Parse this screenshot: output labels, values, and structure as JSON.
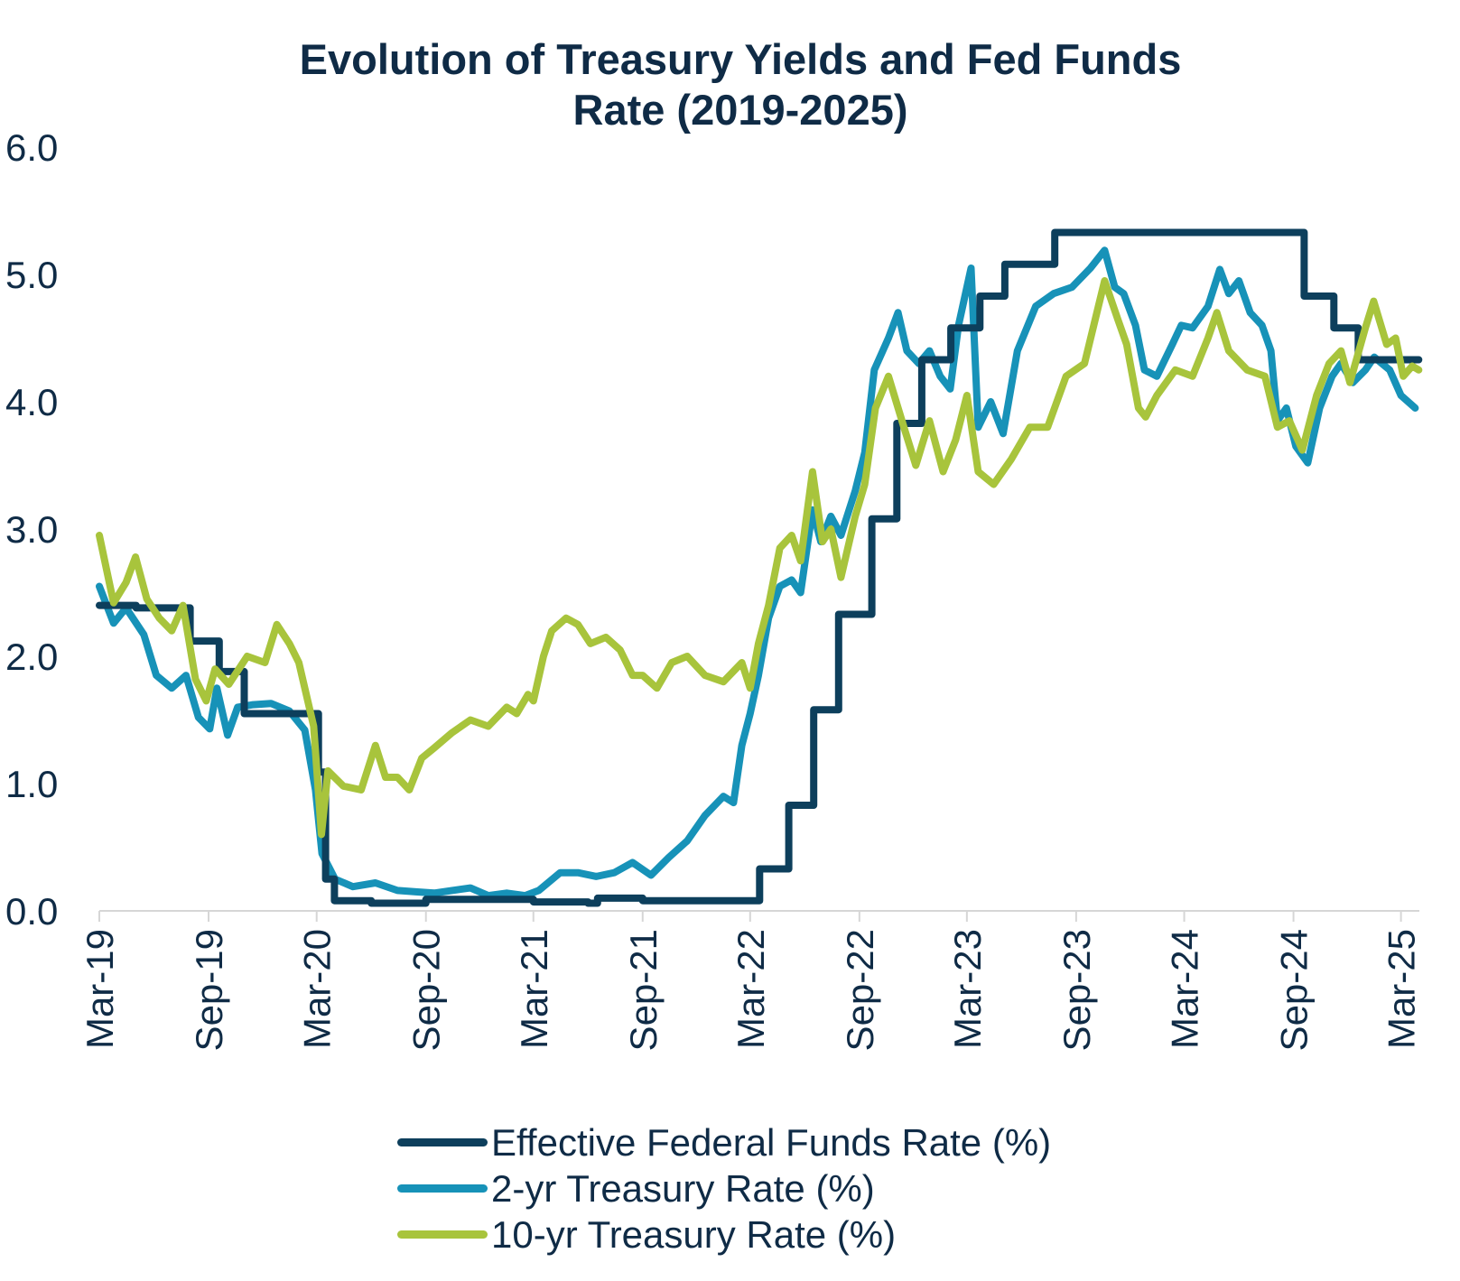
{
  "chart_data": {
    "type": "line",
    "title_lines": [
      "Evolution of Treasury Yields and Fed Funds",
      "Rate (2019-2025)"
    ],
    "xlabel": "",
    "ylabel": "",
    "ylim": [
      0,
      6
    ],
    "y_ticks": [
      "0.0",
      "1.0",
      "2.0",
      "3.0",
      "4.0",
      "5.0",
      "6.0"
    ],
    "x_range": [
      "2019-03-01",
      "2025-04-01"
    ],
    "x_ticks": [
      {
        "label": "Mar-19",
        "date": "2019-03-01"
      },
      {
        "label": "Sep-19",
        "date": "2019-09-01"
      },
      {
        "label": "Mar-20",
        "date": "2020-03-01"
      },
      {
        "label": "Sep-20",
        "date": "2020-09-01"
      },
      {
        "label": "Mar-21",
        "date": "2021-03-01"
      },
      {
        "label": "Sep-21",
        "date": "2021-09-01"
      },
      {
        "label": "Mar-22",
        "date": "2022-03-01"
      },
      {
        "label": "Sep-22",
        "date": "2022-09-01"
      },
      {
        "label": "Mar-23",
        "date": "2023-03-01"
      },
      {
        "label": "Sep-23",
        "date": "2023-09-01"
      },
      {
        "label": "Mar-24",
        "date": "2024-03-01"
      },
      {
        "label": "Sep-24",
        "date": "2024-09-01"
      },
      {
        "label": "Mar-25",
        "date": "2025-03-01"
      }
    ],
    "grid": false,
    "legend_position": "bottom",
    "series": [
      {
        "name": "Effective Federal Funds Rate (%)",
        "color": "#0d3f5c",
        "step": true,
        "points": [
          [
            "2019-03-01",
            2.4
          ],
          [
            "2019-05-01",
            2.4
          ],
          [
            "2019-05-02",
            2.38
          ],
          [
            "2019-07-31",
            2.38
          ],
          [
            "2019-08-01",
            2.12
          ],
          [
            "2019-09-18",
            2.12
          ],
          [
            "2019-09-19",
            1.88
          ],
          [
            "2019-10-30",
            1.88
          ],
          [
            "2019-10-31",
            1.55
          ],
          [
            "2020-03-03",
            1.55
          ],
          [
            "2020-03-04",
            1.09
          ],
          [
            "2020-03-15",
            1.09
          ],
          [
            "2020-03-16",
            0.25
          ],
          [
            "2020-03-31",
            0.08
          ],
          [
            "2020-06-01",
            0.06
          ],
          [
            "2020-09-01",
            0.09
          ],
          [
            "2020-12-01",
            0.09
          ],
          [
            "2021-03-01",
            0.07
          ],
          [
            "2021-06-01",
            0.06
          ],
          [
            "2021-06-17",
            0.1
          ],
          [
            "2021-09-01",
            0.08
          ],
          [
            "2022-03-16",
            0.08
          ],
          [
            "2022-03-17",
            0.33
          ],
          [
            "2022-05-04",
            0.33
          ],
          [
            "2022-05-05",
            0.83
          ],
          [
            "2022-06-15",
            0.83
          ],
          [
            "2022-06-16",
            1.58
          ],
          [
            "2022-07-27",
            1.58
          ],
          [
            "2022-07-28",
            2.33
          ],
          [
            "2022-09-21",
            2.33
          ],
          [
            "2022-09-22",
            3.08
          ],
          [
            "2022-11-02",
            3.08
          ],
          [
            "2022-11-03",
            3.83
          ],
          [
            "2022-12-14",
            3.83
          ],
          [
            "2022-12-15",
            4.33
          ],
          [
            "2023-02-01",
            4.33
          ],
          [
            "2023-02-02",
            4.58
          ],
          [
            "2023-03-22",
            4.58
          ],
          [
            "2023-03-23",
            4.83
          ],
          [
            "2023-05-03",
            4.83
          ],
          [
            "2023-05-04",
            5.08
          ],
          [
            "2023-07-26",
            5.08
          ],
          [
            "2023-07-27",
            5.33
          ],
          [
            "2024-09-18",
            5.33
          ],
          [
            "2024-09-19",
            4.83
          ],
          [
            "2024-11-07",
            4.83
          ],
          [
            "2024-11-08",
            4.58
          ],
          [
            "2024-12-18",
            4.58
          ],
          [
            "2024-12-19",
            4.33
          ],
          [
            "2025-03-31",
            4.33
          ]
        ]
      },
      {
        "name": "2-yr Treasury Rate (%)",
        "color": "#1792b8",
        "step": false,
        "points": [
          [
            "2019-03-01",
            2.55
          ],
          [
            "2019-03-25",
            2.26
          ],
          [
            "2019-04-15",
            2.38
          ],
          [
            "2019-05-15",
            2.17
          ],
          [
            "2019-06-05",
            1.85
          ],
          [
            "2019-07-01",
            1.75
          ],
          [
            "2019-07-25",
            1.85
          ],
          [
            "2019-08-15",
            1.52
          ],
          [
            "2019-09-03",
            1.43
          ],
          [
            "2019-09-15",
            1.75
          ],
          [
            "2019-10-03",
            1.38
          ],
          [
            "2019-10-20",
            1.6
          ],
          [
            "2019-11-15",
            1.62
          ],
          [
            "2019-12-15",
            1.63
          ],
          [
            "2020-01-15",
            1.57
          ],
          [
            "2020-02-10",
            1.42
          ],
          [
            "2020-02-28",
            0.95
          ],
          [
            "2020-03-10",
            0.45
          ],
          [
            "2020-04-01",
            0.25
          ],
          [
            "2020-05-01",
            0.19
          ],
          [
            "2020-06-08",
            0.22
          ],
          [
            "2020-07-15",
            0.16
          ],
          [
            "2020-08-15",
            0.15
          ],
          [
            "2020-09-15",
            0.14
          ],
          [
            "2020-10-15",
            0.16
          ],
          [
            "2020-11-15",
            0.18
          ],
          [
            "2020-12-15",
            0.12
          ],
          [
            "2021-01-15",
            0.14
          ],
          [
            "2021-02-15",
            0.12
          ],
          [
            "2021-03-10",
            0.16
          ],
          [
            "2021-04-15",
            0.3
          ],
          [
            "2021-05-15",
            0.3
          ],
          [
            "2021-06-15",
            0.27
          ],
          [
            "2021-07-15",
            0.3
          ],
          [
            "2021-08-15",
            0.38
          ],
          [
            "2021-09-15",
            0.28
          ],
          [
            "2021-10-15",
            0.42
          ],
          [
            "2021-11-15",
            0.55
          ],
          [
            "2021-12-15",
            0.75
          ],
          [
            "2022-01-15",
            0.9
          ],
          [
            "2022-02-01",
            0.85
          ],
          [
            "2022-02-15",
            1.3
          ],
          [
            "2022-03-01",
            1.55
          ],
          [
            "2022-03-15",
            1.85
          ],
          [
            "2022-04-01",
            2.3
          ],
          [
            "2022-04-20",
            2.55
          ],
          [
            "2022-05-10",
            2.6
          ],
          [
            "2022-05-25",
            2.5
          ],
          [
            "2022-06-14",
            3.15
          ],
          [
            "2022-06-28",
            2.9
          ],
          [
            "2022-07-15",
            3.1
          ],
          [
            "2022-08-01",
            2.95
          ],
          [
            "2022-08-25",
            3.3
          ],
          [
            "2022-09-10",
            3.6
          ],
          [
            "2022-09-26",
            4.25
          ],
          [
            "2022-10-20",
            4.5
          ],
          [
            "2022-11-05",
            4.7
          ],
          [
            "2022-11-20",
            4.4
          ],
          [
            "2022-12-10",
            4.3
          ],
          [
            "2022-12-28",
            4.4
          ],
          [
            "2023-01-15",
            4.2
          ],
          [
            "2023-02-01",
            4.1
          ],
          [
            "2023-02-15",
            4.6
          ],
          [
            "2023-03-08",
            5.05
          ],
          [
            "2023-03-20",
            3.8
          ],
          [
            "2023-04-10",
            4.0
          ],
          [
            "2023-05-01",
            3.75
          ],
          [
            "2023-05-25",
            4.4
          ],
          [
            "2023-06-25",
            4.75
          ],
          [
            "2023-07-25",
            4.85
          ],
          [
            "2023-08-25",
            4.9
          ],
          [
            "2023-09-25",
            5.05
          ],
          [
            "2023-10-19",
            5.19
          ],
          [
            "2023-11-05",
            4.9
          ],
          [
            "2023-11-20",
            4.85
          ],
          [
            "2023-12-10",
            4.6
          ],
          [
            "2023-12-25",
            4.25
          ],
          [
            "2024-01-15",
            4.2
          ],
          [
            "2024-02-10",
            4.45
          ],
          [
            "2024-02-25",
            4.6
          ],
          [
            "2024-03-15",
            4.58
          ],
          [
            "2024-04-10",
            4.75
          ],
          [
            "2024-04-30",
            5.04
          ],
          [
            "2024-05-15",
            4.85
          ],
          [
            "2024-06-01",
            4.95
          ],
          [
            "2024-06-20",
            4.7
          ],
          [
            "2024-07-10",
            4.6
          ],
          [
            "2024-07-25",
            4.4
          ],
          [
            "2024-08-05",
            3.85
          ],
          [
            "2024-08-20",
            3.95
          ],
          [
            "2024-09-05",
            3.65
          ],
          [
            "2024-09-25",
            3.52
          ],
          [
            "2024-10-15",
            3.95
          ],
          [
            "2024-11-05",
            4.2
          ],
          [
            "2024-11-20",
            4.3
          ],
          [
            "2024-12-10",
            4.15
          ],
          [
            "2024-12-31",
            4.25
          ],
          [
            "2025-01-15",
            4.35
          ],
          [
            "2025-02-10",
            4.25
          ],
          [
            "2025-03-01",
            4.05
          ],
          [
            "2025-03-25",
            3.95
          ]
        ]
      },
      {
        "name": "10-yr Treasury Rate (%)",
        "color": "#a8c43c",
        "step": false,
        "points": [
          [
            "2019-03-01",
            2.95
          ],
          [
            "2019-03-25",
            2.42
          ],
          [
            "2019-04-15",
            2.58
          ],
          [
            "2019-05-01",
            2.78
          ],
          [
            "2019-05-20",
            2.45
          ],
          [
            "2019-06-10",
            2.3
          ],
          [
            "2019-07-01",
            2.2
          ],
          [
            "2019-07-20",
            2.4
          ],
          [
            "2019-08-10",
            1.82
          ],
          [
            "2019-08-28",
            1.65
          ],
          [
            "2019-09-12",
            1.9
          ],
          [
            "2019-10-05",
            1.78
          ],
          [
            "2019-11-05",
            2.0
          ],
          [
            "2019-12-05",
            1.95
          ],
          [
            "2019-12-25",
            2.25
          ],
          [
            "2020-01-15",
            2.1
          ],
          [
            "2020-01-31",
            1.95
          ],
          [
            "2020-02-25",
            1.45
          ],
          [
            "2020-03-09",
            0.6
          ],
          [
            "2020-03-20",
            1.1
          ],
          [
            "2020-04-15",
            0.98
          ],
          [
            "2020-05-15",
            0.95
          ],
          [
            "2020-06-08",
            1.3
          ],
          [
            "2020-06-25",
            1.05
          ],
          [
            "2020-07-15",
            1.05
          ],
          [
            "2020-08-04",
            0.95
          ],
          [
            "2020-08-25",
            1.2
          ],
          [
            "2020-09-15",
            1.28
          ],
          [
            "2020-10-15",
            1.4
          ],
          [
            "2020-11-15",
            1.5
          ],
          [
            "2020-12-15",
            1.45
          ],
          [
            "2021-01-15",
            1.6
          ],
          [
            "2021-02-01",
            1.55
          ],
          [
            "2021-02-20",
            1.7
          ],
          [
            "2021-03-01",
            1.65
          ],
          [
            "2021-03-18",
            2.0
          ],
          [
            "2021-04-01",
            2.2
          ],
          [
            "2021-04-25",
            2.3
          ],
          [
            "2021-05-15",
            2.25
          ],
          [
            "2021-06-05",
            2.1
          ],
          [
            "2021-07-01",
            2.15
          ],
          [
            "2021-07-25",
            2.05
          ],
          [
            "2021-08-15",
            1.85
          ],
          [
            "2021-09-01",
            1.85
          ],
          [
            "2021-09-25",
            1.75
          ],
          [
            "2021-10-20",
            1.95
          ],
          [
            "2021-11-15",
            2.0
          ],
          [
            "2021-12-15",
            1.85
          ],
          [
            "2022-01-15",
            1.8
          ],
          [
            "2022-02-15",
            1.95
          ],
          [
            "2022-03-01",
            1.75
          ],
          [
            "2022-03-15",
            2.1
          ],
          [
            "2022-04-01",
            2.4
          ],
          [
            "2022-04-20",
            2.85
          ],
          [
            "2022-05-10",
            2.95
          ],
          [
            "2022-05-25",
            2.75
          ],
          [
            "2022-06-14",
            3.45
          ],
          [
            "2022-07-01",
            2.9
          ],
          [
            "2022-07-15",
            3.0
          ],
          [
            "2022-08-01",
            2.62
          ],
          [
            "2022-08-25",
            3.1
          ],
          [
            "2022-09-10",
            3.35
          ],
          [
            "2022-09-28",
            3.95
          ],
          [
            "2022-10-20",
            4.2
          ],
          [
            "2022-11-15",
            3.8
          ],
          [
            "2022-12-05",
            3.5
          ],
          [
            "2022-12-28",
            3.85
          ],
          [
            "2023-01-20",
            3.45
          ],
          [
            "2023-02-10",
            3.7
          ],
          [
            "2023-03-01",
            4.05
          ],
          [
            "2023-03-20",
            3.45
          ],
          [
            "2023-04-15",
            3.35
          ],
          [
            "2023-05-15",
            3.55
          ],
          [
            "2023-06-15",
            3.8
          ],
          [
            "2023-07-15",
            3.8
          ],
          [
            "2023-08-15",
            4.2
          ],
          [
            "2023-09-15",
            4.3
          ],
          [
            "2023-10-19",
            4.95
          ],
          [
            "2023-11-10",
            4.65
          ],
          [
            "2023-11-25",
            4.45
          ],
          [
            "2023-12-15",
            3.95
          ],
          [
            "2023-12-27",
            3.88
          ],
          [
            "2024-01-15",
            4.05
          ],
          [
            "2024-02-15",
            4.25
          ],
          [
            "2024-03-15",
            4.2
          ],
          [
            "2024-04-10",
            4.5
          ],
          [
            "2024-04-25",
            4.7
          ],
          [
            "2024-05-15",
            4.4
          ],
          [
            "2024-06-15",
            4.25
          ],
          [
            "2024-07-15",
            4.2
          ],
          [
            "2024-08-05",
            3.8
          ],
          [
            "2024-08-25",
            3.85
          ],
          [
            "2024-09-16",
            3.62
          ],
          [
            "2024-10-10",
            4.05
          ],
          [
            "2024-10-31",
            4.3
          ],
          [
            "2024-11-20",
            4.4
          ],
          [
            "2024-12-05",
            4.15
          ],
          [
            "2024-12-31",
            4.58
          ],
          [
            "2025-01-14",
            4.79
          ],
          [
            "2025-02-05",
            4.45
          ],
          [
            "2025-02-20",
            4.5
          ],
          [
            "2025-03-05",
            4.2
          ],
          [
            "2025-03-20",
            4.28
          ],
          [
            "2025-03-31",
            4.25
          ]
        ]
      }
    ]
  }
}
